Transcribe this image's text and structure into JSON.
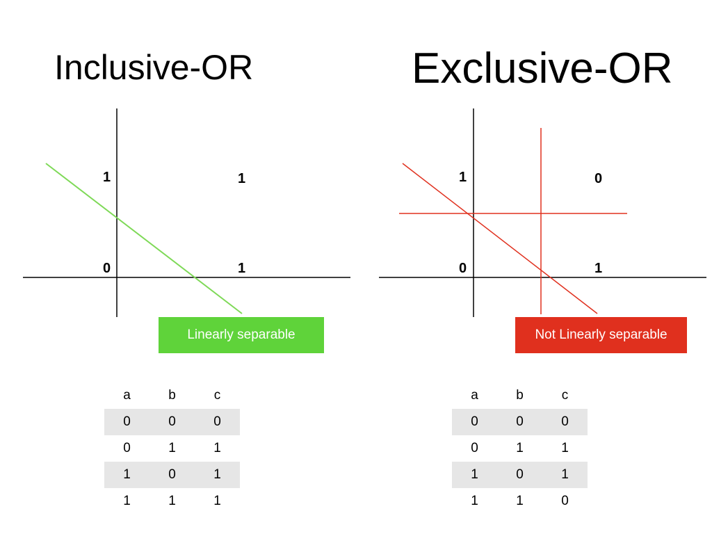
{
  "colors": {
    "inclusive_accent": "#7ed957",
    "inclusive_box": "#5fd33a",
    "exclusive_accent": "#e0301e",
    "exclusive_box": "#e0301e",
    "row_shade": "#e6e6e6",
    "axis": "#000000"
  },
  "panels": [
    {
      "id": "inclusive",
      "title": "Inclusive-OR",
      "points": [
        {
          "a": 0,
          "b": 1,
          "label": "1"
        },
        {
          "a": 1,
          "b": 1,
          "label": "1"
        },
        {
          "a": 0,
          "b": 0,
          "label": "0"
        },
        {
          "a": 1,
          "b": 0,
          "label": "1"
        }
      ],
      "boundaries": 1,
      "separability": "Linearly separable",
      "table": {
        "headers": [
          "a",
          "b",
          "c"
        ],
        "rows": [
          [
            "0",
            "0",
            "0"
          ],
          [
            "0",
            "1",
            "1"
          ],
          [
            "1",
            "0",
            "1"
          ],
          [
            "1",
            "1",
            "1"
          ]
        ]
      }
    },
    {
      "id": "exclusive",
      "title": "Exclusive-OR",
      "points": [
        {
          "a": 0,
          "b": 1,
          "label": "1"
        },
        {
          "a": 1,
          "b": 1,
          "label": "0"
        },
        {
          "a": 0,
          "b": 0,
          "label": "0"
        },
        {
          "a": 1,
          "b": 0,
          "label": "1"
        }
      ],
      "boundaries": 3,
      "separability": "Not Linearly separable",
      "table": {
        "headers": [
          "a",
          "b",
          "c"
        ],
        "rows": [
          [
            "0",
            "0",
            "0"
          ],
          [
            "0",
            "1",
            "1"
          ],
          [
            "1",
            "0",
            "1"
          ],
          [
            "1",
            "1",
            "0"
          ]
        ]
      }
    }
  ]
}
